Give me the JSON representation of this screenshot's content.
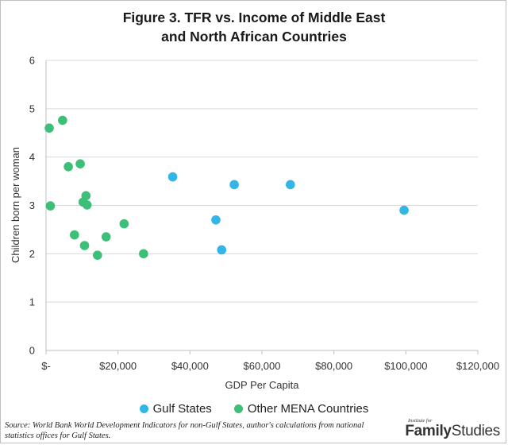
{
  "chart_data": {
    "type": "scatter",
    "title_line1": "Figure 3. TFR vs. Income of Middle East",
    "title_line2": "and North African Countries",
    "xlabel": "GDP Per Capita",
    "ylabel": "Children born per woman",
    "xlim": [
      0,
      120000
    ],
    "ylim": [
      0,
      6
    ],
    "x_ticks": [
      0,
      20000,
      40000,
      60000,
      80000,
      100000,
      120000
    ],
    "x_tick_labels": [
      "$-",
      "$20,000",
      "$40,000",
      "$60,000",
      "$80,000",
      "$100,000",
      "$120,000"
    ],
    "y_ticks": [
      0,
      1,
      2,
      3,
      4,
      5,
      6
    ],
    "y_tick_labels": [
      "0",
      "1",
      "2",
      "3",
      "4",
      "5",
      "6"
    ],
    "grid": "horizontal",
    "legend_position": "bottom",
    "series": [
      {
        "name": "Gulf States",
        "color": "#33b5e8",
        "points": [
          {
            "x": 35200,
            "y": 3.59
          },
          {
            "x": 47200,
            "y": 2.7
          },
          {
            "x": 48800,
            "y": 2.08
          },
          {
            "x": 52300,
            "y": 3.43
          },
          {
            "x": 67900,
            "y": 3.43
          },
          {
            "x": 99500,
            "y": 2.9
          }
        ]
      },
      {
        "name": "Other MENA Countries",
        "color": "#3dbf78",
        "points": [
          {
            "x": 900,
            "y": 4.6
          },
          {
            "x": 1200,
            "y": 2.99
          },
          {
            "x": 4600,
            "y": 4.76
          },
          {
            "x": 6200,
            "y": 3.8
          },
          {
            "x": 7900,
            "y": 2.39
          },
          {
            "x": 9500,
            "y": 3.86
          },
          {
            "x": 10300,
            "y": 3.07
          },
          {
            "x": 10700,
            "y": 2.17
          },
          {
            "x": 11100,
            "y": 3.2
          },
          {
            "x": 11400,
            "y": 3.01
          },
          {
            "x": 14300,
            "y": 1.97
          },
          {
            "x": 16700,
            "y": 2.35
          },
          {
            "x": 21700,
            "y": 2.62
          },
          {
            "x": 27100,
            "y": 2.0
          }
        ]
      }
    ]
  },
  "source_text": "Source: World Bank World Development Indicators for non-Gulf States, author's calculations from national statistics offices for Gulf States.",
  "logo": {
    "small": "Institute for",
    "big_bold": "Family",
    "big_regular": "Studies"
  }
}
